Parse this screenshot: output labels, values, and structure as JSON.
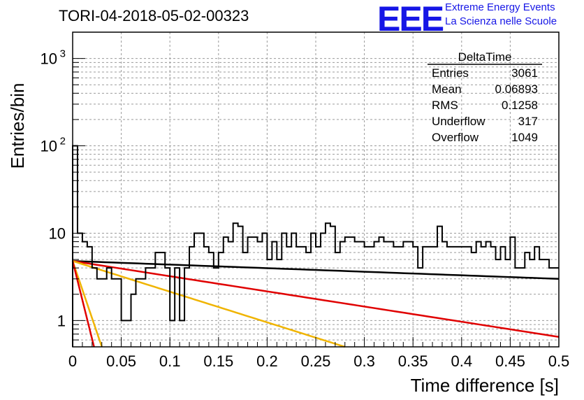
{
  "header": {
    "title": "TORI-04-2018-05-02-00323",
    "logo": "EEE",
    "logo_line1": "Extreme Energy Events",
    "logo_line2": "La Scienza nelle Scuole"
  },
  "stats_box": {
    "name": "DeltaTime",
    "rows": [
      {
        "label": "Entries",
        "value": "3061"
      },
      {
        "label": "Mean",
        "value": "0.06893"
      },
      {
        "label": "RMS",
        "value": "0.1258"
      },
      {
        "label": "Underflow",
        "value": "317"
      },
      {
        "label": "Overflow",
        "value": "1049"
      }
    ]
  },
  "colors": {
    "histogram": "#000000",
    "fit_black": "#000000",
    "fit_red": "#e00000",
    "fit_orange": "#f0b400"
  },
  "chart_data": {
    "type": "line",
    "xlabel": "Time difference [s]",
    "ylabel": "Entries/bin",
    "xlim": [
      0,
      0.5
    ],
    "ylim": [
      0.5,
      2000
    ],
    "log_y": true,
    "grid": true,
    "x_ticks": [
      "0",
      "0.05",
      "0.1",
      "0.15",
      "0.2",
      "0.25",
      "0.3",
      "0.35",
      "0.4",
      "0.45",
      "0.5"
    ],
    "y_ticks": [
      {
        "value": 1,
        "label": "1"
      },
      {
        "value": 10,
        "label": "10"
      },
      {
        "value": 100,
        "label": "10",
        "sup": "2"
      },
      {
        "value": 1000,
        "label": "10",
        "sup": "3"
      }
    ],
    "histogram": {
      "bin_width": 0.005,
      "values": [
        100,
        10,
        8,
        7,
        4,
        3,
        3,
        4,
        3,
        3,
        1,
        1,
        2,
        3,
        3,
        4,
        4,
        6,
        6,
        4,
        1,
        4,
        1,
        4,
        7,
        10,
        10,
        7,
        6,
        4,
        6,
        9,
        8,
        13,
        12,
        6,
        9,
        9,
        8,
        10,
        5,
        8,
        5,
        10,
        7,
        10,
        7,
        7,
        6,
        10,
        7,
        10,
        13,
        12,
        6,
        8,
        9,
        9,
        8,
        8,
        7,
        7,
        8,
        9,
        8,
        8,
        7,
        7,
        8,
        8,
        7,
        4,
        7,
        7,
        7,
        12,
        8,
        7,
        7,
        7,
        7,
        7,
        6,
        8,
        7,
        8,
        7,
        5,
        7,
        5,
        9,
        4,
        4,
        6,
        5,
        7,
        5,
        5,
        4,
        4
      ]
    },
    "series": [
      {
        "color": "#000000",
        "x": [
          0,
          0.5
        ],
        "y": [
          4.8,
          3.0
        ]
      },
      {
        "color": "#e00000",
        "x": [
          0,
          0.5
        ],
        "y": [
          4.8,
          0.65
        ]
      },
      {
        "color": "#f0b400",
        "x": [
          0,
          0.28
        ],
        "y": [
          4.8,
          0.5
        ]
      },
      {
        "color": "#f0b400",
        "x": [
          0,
          0.03
        ],
        "y": [
          4.8,
          0.5
        ]
      },
      {
        "color": "#e00000",
        "x": [
          0,
          0.022
        ],
        "y": [
          4.8,
          0.5
        ]
      }
    ]
  }
}
